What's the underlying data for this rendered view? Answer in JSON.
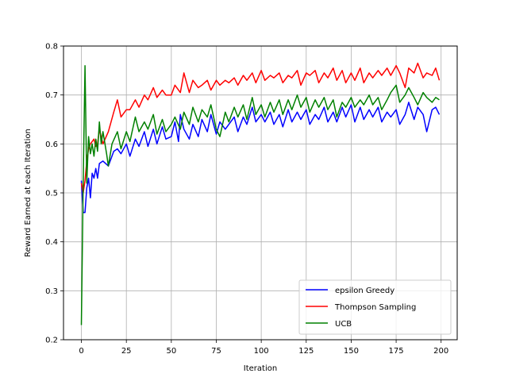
{
  "chart_data": {
    "type": "line",
    "title": "",
    "xlabel": "Iteration",
    "ylabel": "Reward Earned at each Iteration",
    "xlim": [
      -9.95,
      208.95
    ],
    "ylim": [
      0.2,
      0.8
    ],
    "xticks": [
      0,
      25,
      50,
      75,
      100,
      125,
      150,
      175,
      200
    ],
    "yticks": [
      0.2,
      0.3,
      0.4,
      0.5,
      0.6,
      0.7,
      0.8
    ],
    "grid": true,
    "legend_position": "lower-right",
    "series": [
      {
        "name": "epsilon Greedy",
        "color": "#0000ff",
        "x": [
          0,
          1,
          2,
          3,
          4,
          5,
          6,
          7,
          8,
          9,
          10,
          12,
          15,
          18,
          20,
          22,
          25,
          27,
          30,
          32,
          35,
          37,
          40,
          42,
          45,
          47,
          50,
          52,
          54,
          55,
          57,
          60,
          62,
          65,
          67,
          70,
          72,
          75,
          77,
          80,
          82,
          85,
          87,
          90,
          92,
          95,
          97,
          100,
          102,
          105,
          107,
          110,
          112,
          115,
          117,
          120,
          122,
          125,
          127,
          130,
          132,
          135,
          137,
          140,
          142,
          145,
          147,
          150,
          152,
          155,
          157,
          160,
          162,
          165,
          167,
          170,
          172,
          175,
          177,
          180,
          182,
          185,
          187,
          190,
          192,
          195,
          197,
          199
        ],
        "y": [
          0.525,
          0.46,
          0.46,
          0.51,
          0.53,
          0.49,
          0.54,
          0.53,
          0.55,
          0.53,
          0.56,
          0.565,
          0.555,
          0.585,
          0.59,
          0.58,
          0.6,
          0.575,
          0.61,
          0.595,
          0.625,
          0.595,
          0.63,
          0.6,
          0.635,
          0.61,
          0.615,
          0.645,
          0.605,
          0.66,
          0.63,
          0.61,
          0.64,
          0.615,
          0.65,
          0.625,
          0.66,
          0.62,
          0.645,
          0.63,
          0.64,
          0.655,
          0.625,
          0.655,
          0.64,
          0.675,
          0.645,
          0.66,
          0.645,
          0.665,
          0.64,
          0.66,
          0.635,
          0.67,
          0.645,
          0.665,
          0.65,
          0.67,
          0.64,
          0.66,
          0.65,
          0.675,
          0.645,
          0.665,
          0.645,
          0.675,
          0.655,
          0.68,
          0.645,
          0.675,
          0.65,
          0.67,
          0.655,
          0.675,
          0.645,
          0.665,
          0.655,
          0.67,
          0.64,
          0.66,
          0.685,
          0.65,
          0.675,
          0.66,
          0.625,
          0.67,
          0.675,
          0.66
        ]
      },
      {
        "name": "Thompson Sampling",
        "color": "#ff0000",
        "x": [
          0,
          1,
          2,
          3,
          4,
          5,
          6,
          7,
          8,
          9,
          10,
          12,
          15,
          18,
          20,
          22,
          25,
          27,
          30,
          32,
          35,
          37,
          40,
          42,
          45,
          47,
          50,
          52,
          55,
          57,
          60,
          62,
          65,
          67,
          70,
          72,
          75,
          77,
          80,
          82,
          85,
          87,
          90,
          92,
          95,
          97,
          100,
          102,
          105,
          107,
          110,
          112,
          115,
          117,
          120,
          122,
          125,
          127,
          130,
          132,
          135,
          137,
          140,
          142,
          145,
          147,
          150,
          152,
          155,
          157,
          160,
          162,
          165,
          167,
          170,
          172,
          175,
          177,
          180,
          182,
          185,
          187,
          190,
          192,
          195,
          197,
          199
        ],
        "y": [
          0.52,
          0.5,
          0.525,
          0.565,
          0.59,
          0.6,
          0.605,
          0.61,
          0.595,
          0.6,
          0.63,
          0.6,
          0.625,
          0.665,
          0.69,
          0.655,
          0.67,
          0.67,
          0.69,
          0.675,
          0.7,
          0.69,
          0.715,
          0.695,
          0.71,
          0.7,
          0.7,
          0.72,
          0.705,
          0.745,
          0.705,
          0.73,
          0.715,
          0.72,
          0.73,
          0.71,
          0.73,
          0.72,
          0.73,
          0.725,
          0.735,
          0.72,
          0.74,
          0.73,
          0.745,
          0.725,
          0.75,
          0.73,
          0.74,
          0.735,
          0.745,
          0.725,
          0.74,
          0.735,
          0.75,
          0.72,
          0.745,
          0.74,
          0.75,
          0.725,
          0.745,
          0.735,
          0.755,
          0.73,
          0.75,
          0.725,
          0.745,
          0.73,
          0.755,
          0.725,
          0.745,
          0.735,
          0.75,
          0.74,
          0.755,
          0.74,
          0.76,
          0.745,
          0.715,
          0.755,
          0.745,
          0.765,
          0.735,
          0.745,
          0.74,
          0.755,
          0.73
        ]
      },
      {
        "name": "UCB",
        "color": "#008000",
        "x": [
          0,
          1,
          2,
          3,
          4,
          5,
          6,
          7,
          8,
          9,
          10,
          11,
          12,
          14,
          15,
          17,
          20,
          22,
          25,
          27,
          30,
          32,
          35,
          37,
          40,
          42,
          45,
          47,
          50,
          52,
          55,
          57,
          60,
          62,
          65,
          67,
          70,
          72,
          75,
          77,
          80,
          82,
          85,
          87,
          90,
          92,
          95,
          97,
          100,
          102,
          105,
          107,
          110,
          112,
          115,
          117,
          120,
          122,
          125,
          127,
          130,
          132,
          135,
          137,
          140,
          142,
          145,
          147,
          150,
          152,
          155,
          157,
          160,
          162,
          165,
          167,
          170,
          172,
          175,
          177,
          180,
          182,
          185,
          187,
          190,
          192,
          195,
          197,
          199
        ],
        "y": [
          0.23,
          0.52,
          0.76,
          0.52,
          0.615,
          0.58,
          0.6,
          0.575,
          0.61,
          0.585,
          0.645,
          0.6,
          0.625,
          0.58,
          0.555,
          0.6,
          0.625,
          0.59,
          0.625,
          0.605,
          0.655,
          0.625,
          0.645,
          0.63,
          0.66,
          0.62,
          0.65,
          0.625,
          0.64,
          0.655,
          0.63,
          0.665,
          0.64,
          0.675,
          0.645,
          0.67,
          0.655,
          0.68,
          0.63,
          0.615,
          0.665,
          0.645,
          0.675,
          0.655,
          0.68,
          0.65,
          0.695,
          0.66,
          0.68,
          0.655,
          0.685,
          0.665,
          0.69,
          0.66,
          0.69,
          0.67,
          0.7,
          0.675,
          0.695,
          0.665,
          0.69,
          0.675,
          0.695,
          0.67,
          0.69,
          0.655,
          0.685,
          0.675,
          0.695,
          0.675,
          0.69,
          0.68,
          0.7,
          0.68,
          0.695,
          0.67,
          0.69,
          0.705,
          0.72,
          0.685,
          0.7,
          0.715,
          0.695,
          0.68,
          0.705,
          0.695,
          0.685,
          0.695,
          0.69
        ]
      }
    ]
  }
}
